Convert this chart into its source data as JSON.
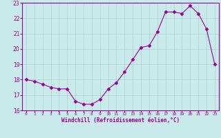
{
  "x": [
    0,
    1,
    2,
    3,
    4,
    5,
    6,
    7,
    8,
    9,
    10,
    11,
    12,
    13,
    14,
    15,
    16,
    17,
    18,
    19,
    20,
    21,
    22,
    23
  ],
  "y": [
    18.0,
    17.9,
    17.7,
    17.5,
    17.4,
    17.4,
    16.6,
    16.4,
    16.4,
    16.7,
    17.4,
    17.8,
    18.5,
    19.3,
    20.1,
    20.2,
    21.1,
    22.4,
    22.4,
    22.3,
    22.8,
    22.3,
    21.3,
    19.0
  ],
  "xlim": [
    -0.5,
    23.5
  ],
  "ylim": [
    16,
    23
  ],
  "yticks": [
    16,
    17,
    18,
    19,
    20,
    21,
    22,
    23
  ],
  "xtick_labels": [
    "0",
    "1",
    "2",
    "3",
    "4",
    "5",
    "6",
    "7",
    "8",
    "9",
    "10",
    "11",
    "12",
    "13",
    "14",
    "15",
    "16",
    "17",
    "18",
    "19",
    "20",
    "21",
    "22",
    "23"
  ],
  "xlabel": "Windchill (Refroidissement éolien,°C)",
  "line_color": "#990099",
  "marker": "D",
  "marker_size": 2.5,
  "bg_color": "#c8eaea",
  "grid_color": "#b0d0d0",
  "axis_color": "#990099",
  "tick_color": "#990099",
  "label_color": "#990099"
}
